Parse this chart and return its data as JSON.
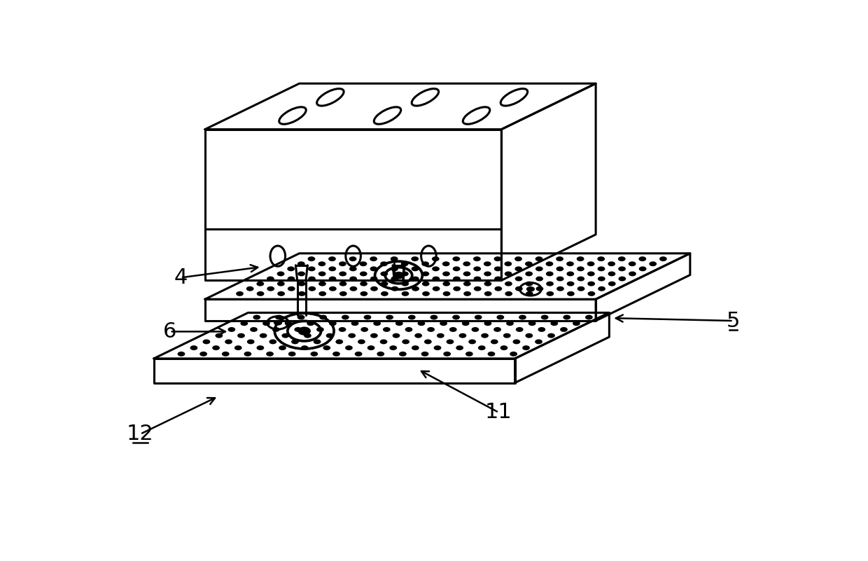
{
  "bg_color": "#ffffff",
  "line_color": "#000000",
  "lw": 2.2,
  "lw_thin": 1.4,
  "label_fontsize": 22,
  "figw": 12.4,
  "figh": 8.01,
  "dpi": 100
}
